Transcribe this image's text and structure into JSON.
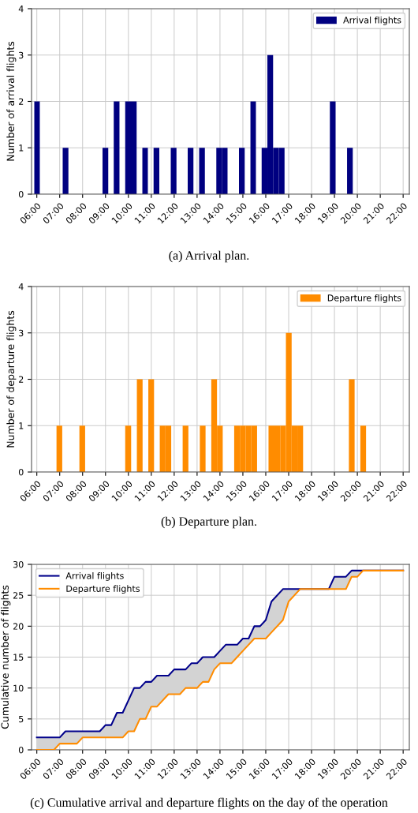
{
  "chart_data": [
    {
      "type": "histogram",
      "title": "(a) Arrival plan.",
      "ylabel": "Number of arrival flights",
      "bins": [
        5.89,
        6.13,
        6.38,
        6.63,
        6.88,
        7.13,
        7.38,
        7.63,
        7.87,
        8.12,
        8.37,
        8.62,
        8.87,
        9.12,
        9.36,
        9.61,
        9.86,
        10.11,
        10.36,
        10.61,
        10.85,
        11.1,
        11.35,
        11.6,
        11.85,
        12.1,
        12.34,
        12.59,
        12.84,
        13.09,
        13.34,
        13.59,
        13.84,
        14.08,
        14.33,
        14.58,
        14.83,
        15.08,
        15.33,
        15.57,
        15.82,
        16.07,
        16.32,
        16.57,
        16.82,
        17.06,
        17.31,
        17.56,
        17.81,
        18.06,
        18.31,
        18.55,
        18.8,
        19.05,
        19.3,
        19.55,
        19.8
      ],
      "series": [
        {
          "name": "Arrival flights",
          "color": "#000080",
          "values": [
            2,
            0,
            0,
            0,
            0,
            1,
            0,
            0,
            0,
            0,
            0,
            0,
            1,
            0,
            2,
            0,
            2,
            2,
            0,
            1,
            0,
            1,
            0,
            0,
            1,
            0,
            0,
            1,
            0,
            1,
            0,
            0,
            1,
            1,
            0,
            0,
            1,
            0,
            2,
            0,
            1,
            3,
            1,
            1,
            0,
            0,
            0,
            0,
            0,
            0,
            0,
            0,
            2,
            0,
            0,
            1
          ]
        }
      ],
      "xlim": [
        5.77,
        22.27
      ],
      "xticks": [
        {
          "value": 6,
          "label": "06:00"
        },
        {
          "value": 7,
          "label": "07:00"
        },
        {
          "value": 8,
          "label": "08:00"
        },
        {
          "value": 9,
          "label": "09:00"
        },
        {
          "value": 10,
          "label": "10:00"
        },
        {
          "value": 11,
          "label": "11:00"
        },
        {
          "value": 12,
          "label": "12:00"
        },
        {
          "value": 13,
          "label": "13:00"
        },
        {
          "value": 14,
          "label": "14:00"
        },
        {
          "value": 15,
          "label": "15:00"
        },
        {
          "value": 16,
          "label": "16:00"
        },
        {
          "value": 17,
          "label": "17:00"
        },
        {
          "value": 18,
          "label": "18:00"
        },
        {
          "value": 19,
          "label": "19:00"
        },
        {
          "value": 20,
          "label": "20:00"
        },
        {
          "value": 21,
          "label": "21:00"
        },
        {
          "value": 22,
          "label": "22:00"
        }
      ],
      "ylim": [
        0,
        4
      ],
      "yticks": [
        0,
        1,
        2,
        3,
        4
      ],
      "grid": true,
      "legend": "top right"
    },
    {
      "type": "histogram",
      "title": "(b) Departure plan.",
      "ylabel": "Number of departure flights",
      "bins": [
        6.86,
        7.11,
        7.36,
        7.61,
        7.86,
        8.11,
        8.36,
        8.61,
        8.86,
        9.11,
        9.36,
        9.61,
        9.86,
        10.12,
        10.37,
        10.62,
        10.87,
        11.12,
        11.37,
        11.62,
        11.87,
        12.12,
        12.37,
        12.62,
        12.87,
        13.12,
        13.37,
        13.62,
        13.87,
        14.12,
        14.37,
        14.62,
        14.87,
        15.12,
        15.37,
        15.62,
        15.87,
        16.12,
        16.38,
        16.63,
        16.88,
        17.13,
        17.38,
        17.63,
        17.88,
        18.13,
        18.38,
        18.63,
        18.88,
        19.13,
        19.38,
        19.63,
        19.88,
        20.13,
        20.38
      ],
      "series": [
        {
          "name": "Departure flights",
          "color": "#ff8c00",
          "values": [
            1,
            0,
            0,
            0,
            1,
            0,
            0,
            0,
            0,
            0,
            0,
            0,
            1,
            0,
            2,
            0,
            2,
            0,
            1,
            1,
            0,
            0,
            1,
            0,
            0,
            1,
            0,
            2,
            1,
            0,
            0,
            1,
            1,
            1,
            1,
            0,
            0,
            1,
            1,
            1,
            3,
            1,
            1,
            0,
            0,
            0,
            0,
            0,
            0,
            0,
            0,
            2,
            0,
            1
          ]
        }
      ],
      "xlim": [
        5.77,
        22.27
      ],
      "xticks": [
        {
          "value": 6,
          "label": "06:00"
        },
        {
          "value": 7,
          "label": "07:00"
        },
        {
          "value": 8,
          "label": "08:00"
        },
        {
          "value": 9,
          "label": "09:00"
        },
        {
          "value": 10,
          "label": "10:00"
        },
        {
          "value": 11,
          "label": "11:00"
        },
        {
          "value": 12,
          "label": "12:00"
        },
        {
          "value": 13,
          "label": "13:00"
        },
        {
          "value": 14,
          "label": "14:00"
        },
        {
          "value": 15,
          "label": "15:00"
        },
        {
          "value": 16,
          "label": "16:00"
        },
        {
          "value": 17,
          "label": "17:00"
        },
        {
          "value": 18,
          "label": "18:00"
        },
        {
          "value": 19,
          "label": "19:00"
        },
        {
          "value": 20,
          "label": "20:00"
        },
        {
          "value": 21,
          "label": "21:00"
        },
        {
          "value": 22,
          "label": "22:00"
        }
      ],
      "ylim": [
        0,
        4
      ],
      "yticks": [
        0,
        1,
        2,
        3,
        4
      ],
      "grid": true,
      "legend": "top right"
    },
    {
      "type": "line",
      "title": "(c) Cumulative arrival and departure flights on the day of the operation",
      "ylabel": "Cumulative number of flights",
      "x": [
        6,
        6.75,
        7,
        7.25,
        7.75,
        8,
        8.75,
        9,
        9.25,
        9.5,
        9.75,
        10,
        10.25,
        10.5,
        10.75,
        11,
        11.25,
        11.75,
        12,
        12.25,
        12.5,
        12.75,
        13,
        13.25,
        13.5,
        13.75,
        14,
        14.25,
        14.5,
        14.75,
        15,
        15.25,
        15.5,
        15.75,
        16,
        16.25,
        16.75,
        17,
        17.5,
        18.75,
        19,
        19.5,
        19.75,
        20,
        20.25,
        22
      ],
      "series": [
        {
          "name": "Arrival flights",
          "color": "#00008b",
          "values": [
            2,
            2,
            2,
            3,
            3,
            3,
            3,
            4,
            4,
            6,
            6,
            8,
            10,
            10,
            11,
            11,
            12,
            12,
            13,
            13,
            13,
            14,
            14,
            15,
            15,
            15,
            16,
            17,
            17,
            17,
            18,
            18,
            20,
            20,
            21,
            24,
            26,
            26,
            26,
            26,
            28,
            28,
            29,
            29,
            29,
            29
          ],
          "lower": [
            0,
            0,
            1,
            1,
            1,
            2,
            2,
            2,
            2,
            2,
            2,
            3,
            3,
            5,
            5,
            7,
            7,
            9,
            9,
            9,
            10,
            10,
            10,
            11,
            11,
            13,
            14,
            14,
            14,
            15,
            16,
            17,
            18,
            18,
            18,
            19,
            21,
            24,
            26,
            26,
            26,
            26,
            28,
            28,
            29,
            29
          ],
          "upper": [
            2,
            2,
            2,
            3,
            3,
            3,
            3,
            4,
            4,
            6,
            6,
            8,
            10,
            10,
            11,
            11,
            12,
            12,
            13,
            13,
            13,
            14,
            14,
            15,
            15,
            15,
            16,
            17,
            17,
            17,
            18,
            18,
            20,
            20,
            21,
            24,
            26,
            26,
            26,
            26,
            28,
            28,
            29,
            29,
            29,
            29
          ]
        },
        {
          "name": "Departure flights",
          "color": "#ff8c00",
          "values": [
            0,
            0,
            1,
            1,
            1,
            2,
            2,
            2,
            2,
            2,
            2,
            3,
            3,
            5,
            5,
            7,
            7,
            9,
            9,
            9,
            10,
            10,
            10,
            11,
            11,
            13,
            14,
            14,
            14,
            15,
            16,
            17,
            18,
            18,
            18,
            19,
            21,
            24,
            26,
            26,
            26,
            26,
            28,
            28,
            29,
            29
          ]
        }
      ],
      "xlim": [
        5.77,
        22.27
      ],
      "xticks": [
        {
          "value": 6,
          "label": "06:00"
        },
        {
          "value": 7,
          "label": "07:00"
        },
        {
          "value": 8,
          "label": "08:00"
        },
        {
          "value": 9,
          "label": "09:00"
        },
        {
          "value": 10,
          "label": "10:00"
        },
        {
          "value": 11,
          "label": "11:00"
        },
        {
          "value": 12,
          "label": "12:00"
        },
        {
          "value": 13,
          "label": "13:00"
        },
        {
          "value": 14,
          "label": "14:00"
        },
        {
          "value": 15,
          "label": "15:00"
        },
        {
          "value": 16,
          "label": "16:00"
        },
        {
          "value": 17,
          "label": "17:00"
        },
        {
          "value": 18,
          "label": "18:00"
        },
        {
          "value": 19,
          "label": "19:00"
        },
        {
          "value": 20,
          "label": "20:00"
        },
        {
          "value": 21,
          "label": "21:00"
        },
        {
          "value": 22,
          "label": "22:00"
        }
      ],
      "ylim": [
        0,
        30
      ],
      "yticks": [
        0,
        5,
        10,
        15,
        20,
        25,
        30
      ],
      "grid": true,
      "legend": "top left",
      "line_style": "solid",
      "marker": "none"
    }
  ]
}
